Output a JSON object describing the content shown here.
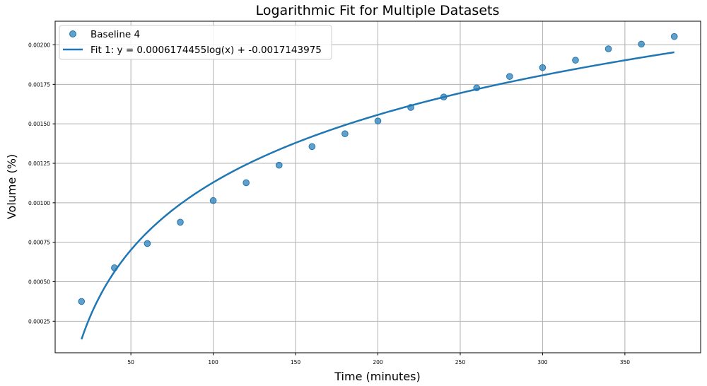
{
  "chart_data": {
    "type": "scatter",
    "title": "Logarithmic Fit for Multiple Datasets",
    "xlabel": "Time (minutes)",
    "ylabel": "Volume (%)",
    "xlim": [
      4,
      396
    ],
    "ylim": [
      5e-05,
      0.00215
    ],
    "grid": true,
    "legend_position": "top-left",
    "x_ticks": [
      50,
      100,
      150,
      200,
      250,
      300,
      350
    ],
    "y_ticks": [
      0.00025,
      0.0005,
      0.00075,
      0.001,
      0.00125,
      0.0015,
      0.00175,
      0.002
    ],
    "series": [
      {
        "name": "Baseline 4",
        "kind": "scatter",
        "color": "#1f77b4",
        "x": [
          20,
          40,
          60,
          80,
          100,
          120,
          140,
          160,
          180,
          200,
          220,
          240,
          260,
          280,
          300,
          320,
          340,
          360,
          380
        ],
        "y": [
          0.000375,
          0.000588,
          0.000742,
          0.000877,
          0.001014,
          0.001127,
          0.001238,
          0.001356,
          0.001437,
          0.001518,
          0.001604,
          0.00167,
          0.001728,
          0.0018,
          0.001856,
          0.001903,
          0.001975,
          0.002005,
          0.002053
        ]
      },
      {
        "name": "Fit 1: y = 0.0006174455log(x) + -0.0017143975",
        "kind": "line",
        "color": "#1f77b4",
        "model": "logarithmic",
        "coefficients": {
          "a": 0.0006174455,
          "b": -0.0017143975
        },
        "x_range": [
          20,
          380
        ]
      }
    ]
  }
}
